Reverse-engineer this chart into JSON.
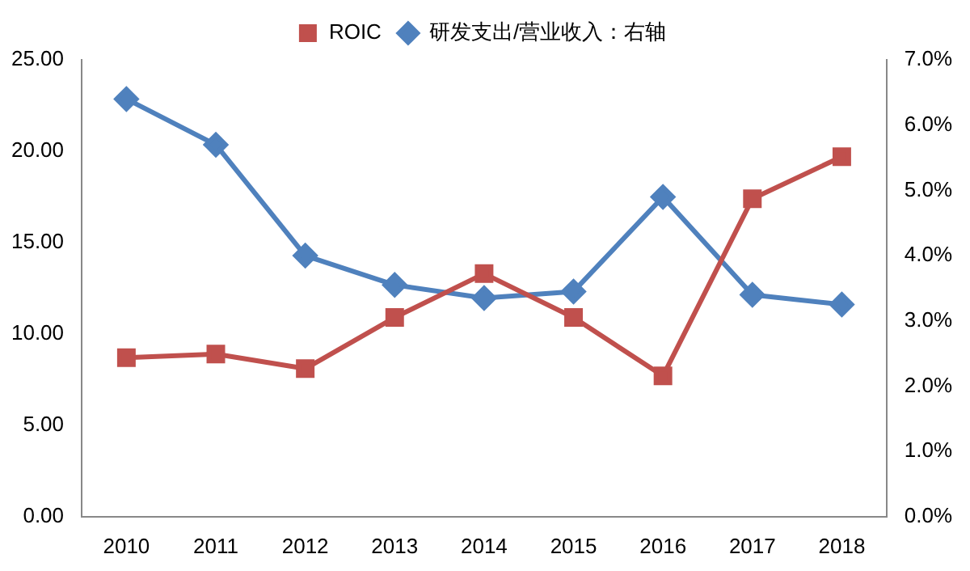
{
  "chart_data": {
    "type": "line",
    "categories": [
      "2010",
      "2011",
      "2012",
      "2013",
      "2014",
      "2015",
      "2016",
      "2017",
      "2018"
    ],
    "series": [
      {
        "name": "ROIC",
        "color": "#c0504d",
        "marker": "square",
        "values": [
          8.7,
          8.9,
          8.1,
          10.9,
          13.3,
          10.9,
          7.7,
          17.4,
          19.7
        ]
      },
      {
        "name": "研发支出/营业收入：右轴",
        "color": "#4f81bd",
        "marker": "diamond",
        "axis": "y2",
        "values": [
          6.4,
          5.7,
          4.0,
          3.55,
          3.35,
          3.45,
          4.9,
          3.4,
          3.25
        ]
      }
    ],
    "ylim": [
      0,
      25
    ],
    "yticks": [
      {
        "value": 0,
        "label": "0.00"
      },
      {
        "value": 5,
        "label": "5.00"
      },
      {
        "value": 10,
        "label": "10.00"
      },
      {
        "value": 15,
        "label": "15.00"
      },
      {
        "value": 20,
        "label": "20.00"
      },
      {
        "value": 25,
        "label": "25.00"
      }
    ],
    "y2lim": [
      0,
      7
    ],
    "y2ticks": [
      {
        "value": 0,
        "label": "0.0%"
      },
      {
        "value": 1,
        "label": "1.0%"
      },
      {
        "value": 2,
        "label": "2.0%"
      },
      {
        "value": 3,
        "label": "3.0%"
      },
      {
        "value": 4,
        "label": "4.0%"
      },
      {
        "value": 5,
        "label": "5.0%"
      },
      {
        "value": 6,
        "label": "6.0%"
      },
      {
        "value": 7,
        "label": "7.0%"
      }
    ],
    "grid": false,
    "legend": "top",
    "line_style": "solid"
  }
}
